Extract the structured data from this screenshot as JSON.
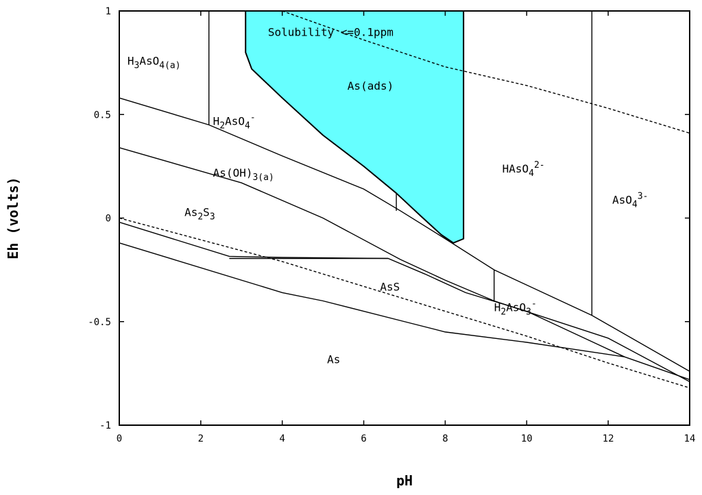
{
  "chart_data": {
    "type": "line",
    "xlabel": "pH",
    "ylabel": "Eh (volts)",
    "xlim": [
      0,
      14
    ],
    "ylim": [
      -1,
      1
    ],
    "x_ticks": [
      0,
      2,
      4,
      6,
      8,
      10,
      12,
      14
    ],
    "y_ticks": [
      {
        "value": 1,
        "label": "1"
      },
      {
        "value": 0.5,
        "label": "0.5"
      },
      {
        "value": 0,
        "label": "0"
      },
      {
        "value": -0.5,
        "label": "-0.5"
      },
      {
        "value": -1,
        "label": "-1"
      }
    ],
    "solubility_region": {
      "label": "Solubility <=0.1ppm",
      "color": "#66FFFF",
      "boundary": [
        [
          3.1,
          1.0
        ],
        [
          3.1,
          0.8
        ],
        [
          3.25,
          0.72
        ],
        [
          4.0,
          0.58
        ],
        [
          5.0,
          0.4
        ],
        [
          6.0,
          0.25
        ],
        [
          6.8,
          0.12
        ],
        [
          7.4,
          0.01
        ],
        [
          7.9,
          -0.08
        ],
        [
          8.2,
          -0.12
        ],
        [
          8.45,
          -0.1
        ],
        [
          8.45,
          1.0
        ]
      ]
    },
    "boundaries": [
      {
        "style": "solid",
        "points": [
          [
            0,
            0.58
          ],
          [
            2.2,
            0.45
          ],
          [
            4,
            0.3
          ],
          [
            6,
            0.14
          ],
          [
            6.9,
            0.035
          ],
          [
            8,
            -0.1
          ],
          [
            9.2,
            -0.25
          ],
          [
            11.6,
            -0.47
          ],
          [
            14,
            -0.74
          ]
        ]
      },
      {
        "style": "solid",
        "points": [
          [
            0,
            0.34
          ],
          [
            3,
            0.17
          ],
          [
            5,
            0.0
          ],
          [
            6.9,
            -0.2
          ],
          [
            8,
            -0.3
          ],
          [
            9.2,
            -0.4
          ],
          [
            12,
            -0.58
          ],
          [
            14,
            -0.79
          ]
        ]
      },
      {
        "style": "solid",
        "points": [
          [
            0,
            -0.02
          ],
          [
            2.7,
            -0.185
          ],
          [
            4,
            -0.19
          ],
          [
            6.6,
            -0.195
          ],
          [
            7.5,
            -0.27
          ],
          [
            8.5,
            -0.36
          ],
          [
            10,
            -0.45
          ],
          [
            12.4,
            -0.67
          ],
          [
            14,
            -0.78
          ]
        ]
      },
      {
        "style": "solid",
        "points": [
          [
            0,
            -0.12
          ],
          [
            4,
            -0.36
          ],
          [
            5,
            -0.4
          ],
          [
            7,
            -0.5
          ],
          [
            8,
            -0.55
          ],
          [
            10,
            -0.6
          ],
          [
            12.4,
            -0.67
          ]
        ]
      },
      {
        "style": "solid",
        "points": [
          [
            2.2,
            1.0
          ],
          [
            2.2,
            0.45
          ]
        ]
      },
      {
        "style": "solid",
        "points": [
          [
            6.8,
            0.12
          ],
          [
            6.8,
            0.035
          ]
        ]
      },
      {
        "style": "solid",
        "points": [
          [
            9.2,
            -0.25
          ],
          [
            9.2,
            -0.4
          ]
        ]
      },
      {
        "style": "solid",
        "points": [
          [
            11.6,
            1.0
          ],
          [
            11.6,
            -0.47
          ]
        ]
      },
      {
        "style": "solid",
        "points": [
          [
            2.7,
            -0.195
          ],
          [
            6.6,
            -0.195
          ]
        ]
      },
      {
        "style": "dashed",
        "points": [
          [
            4,
            1.0
          ],
          [
            6,
            0.86
          ],
          [
            8,
            0.73
          ],
          [
            10,
            0.64
          ],
          [
            12,
            0.53
          ],
          [
            14,
            0.41
          ]
        ]
      },
      {
        "style": "dashed",
        "points": [
          [
            0,
            0.0
          ],
          [
            4,
            -0.21
          ],
          [
            6,
            -0.33
          ],
          [
            8,
            -0.45
          ],
          [
            10,
            -0.57
          ],
          [
            12,
            -0.7
          ],
          [
            14,
            -0.82
          ]
        ]
      }
    ],
    "region_labels": [
      {
        "id": "h3aso4",
        "x": 0.2,
        "y": 0.74,
        "parts": [
          {
            "t": "H"
          },
          {
            "t": "3",
            "s": "sub"
          },
          {
            "t": "AsO"
          },
          {
            "t": "4",
            "s": "sub"
          },
          {
            "t": "(a)",
            "s": "sub"
          }
        ]
      },
      {
        "id": "h2aso4",
        "x": 2.3,
        "y": 0.45,
        "parts": [
          {
            "t": "H"
          },
          {
            "t": "2",
            "s": "sub"
          },
          {
            "t": "AsO"
          },
          {
            "t": "4",
            "s": "sub"
          },
          {
            "t": "-",
            "s": "sup"
          }
        ]
      },
      {
        "id": "as-ads",
        "x": 5.6,
        "y": 0.62,
        "parts": [
          {
            "t": "As(ads)"
          }
        ]
      },
      {
        "id": "as-oh3",
        "x": 2.3,
        "y": 0.2,
        "parts": [
          {
            "t": "As(OH)"
          },
          {
            "t": "3",
            "s": "sub"
          },
          {
            "t": "(a)",
            "s": "sub"
          }
        ]
      },
      {
        "id": "haso4",
        "x": 9.4,
        "y": 0.22,
        "parts": [
          {
            "t": "HAsO"
          },
          {
            "t": "4",
            "s": "sub"
          },
          {
            "t": "2-",
            "s": "sup"
          }
        ]
      },
      {
        "id": "aso4",
        "x": 12.1,
        "y": 0.07,
        "parts": [
          {
            "t": "AsO"
          },
          {
            "t": "4",
            "s": "sub"
          },
          {
            "t": "3-",
            "s": "sup"
          }
        ]
      },
      {
        "id": "as2s3",
        "x": 1.6,
        "y": 0.01,
        "parts": [
          {
            "t": "As"
          },
          {
            "t": "2",
            "s": "sub"
          },
          {
            "t": "S"
          },
          {
            "t": "3",
            "s": "sub"
          }
        ]
      },
      {
        "id": "ass",
        "x": 6.4,
        "y": -0.35,
        "parts": [
          {
            "t": "AsS"
          }
        ]
      },
      {
        "id": "h2aso3",
        "x": 9.2,
        "y": -0.45,
        "parts": [
          {
            "t": "H"
          },
          {
            "t": "2",
            "s": "sub"
          },
          {
            "t": "AsO"
          },
          {
            "t": "3",
            "s": "sub"
          },
          {
            "t": "-",
            "s": "sup"
          }
        ]
      },
      {
        "id": "as",
        "x": 5.1,
        "y": -0.7,
        "parts": [
          {
            "t": "As"
          }
        ]
      }
    ]
  }
}
